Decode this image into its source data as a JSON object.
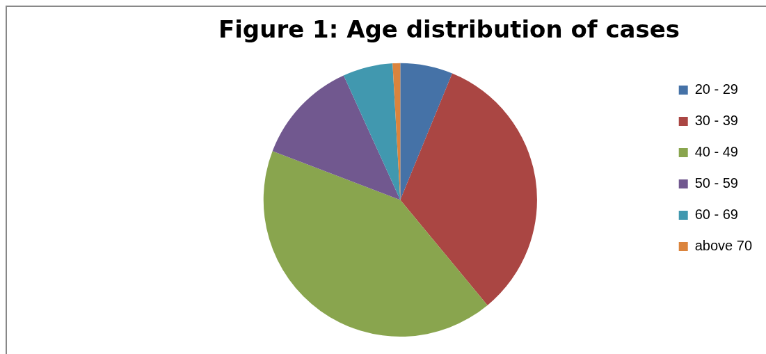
{
  "chart_data": {
    "type": "pie",
    "title": "Figure 1: Age distribution of cases",
    "categories": [
      "20 - 29",
      "30 - 39",
      "40 - 49",
      "50 - 59",
      "60 - 69",
      "above 70"
    ],
    "values": [
      6.2,
      32.8,
      41.8,
      12.4,
      5.9,
      0.9
    ],
    "colors": [
      "#4572a7",
      "#aa4643",
      "#89a54e",
      "#71588f",
      "#4198af",
      "#db843d"
    ],
    "legend": "right"
  }
}
